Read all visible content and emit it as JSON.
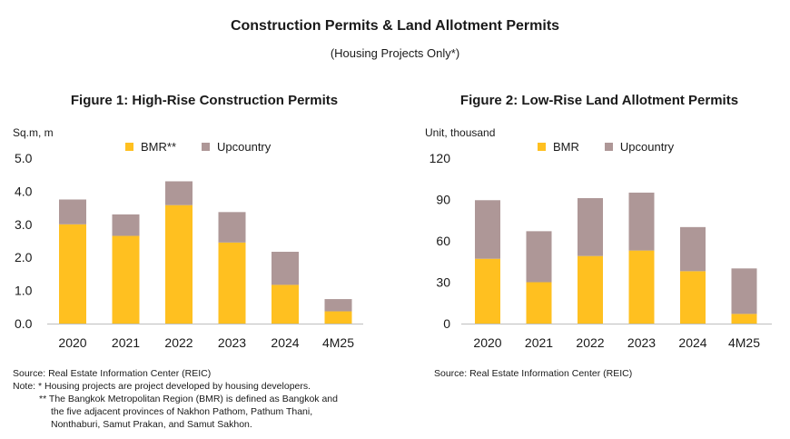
{
  "header": {
    "title": "Construction Permits & Land Allotment Permits",
    "subtitle": "(Housing Projects Only*)"
  },
  "colors": {
    "bmr": "#FFC020",
    "upcountry": "#AE9797"
  },
  "chart_data": [
    {
      "type": "bar",
      "stacked": true,
      "title": "Figure 1: High-Rise Construction Permits",
      "unit_label": "Sq.m, m",
      "categories": [
        "2020",
        "2021",
        "2022",
        "2023",
        "2024",
        "4M25"
      ],
      "series": [
        {
          "name": "BMR**",
          "values": [
            3.0,
            2.65,
            3.58,
            2.45,
            1.17,
            0.37
          ]
        },
        {
          "name": "Upcountry",
          "values": [
            0.75,
            0.65,
            0.72,
            0.92,
            1.0,
            0.37
          ]
        }
      ],
      "ylim": [
        0,
        5
      ],
      "yticks": [
        "0.0",
        "1.0",
        "2.0",
        "3.0",
        "4.0",
        "5.0"
      ],
      "grid": false,
      "legend": "top"
    },
    {
      "type": "bar",
      "stacked": true,
      "title": "Figure 2: Low-Rise Land Allotment Permits",
      "unit_label": "Unit, thousand",
      "categories": [
        "2020",
        "2021",
        "2022",
        "2023",
        "2024",
        "4M25"
      ],
      "series": [
        {
          "name": "BMR",
          "values": [
            47,
            30,
            49,
            53,
            38,
            7
          ]
        },
        {
          "name": "Upcountry",
          "values": [
            42.5,
            37,
            42,
            42,
            32,
            33
          ]
        }
      ],
      "ylim": [
        0,
        120
      ],
      "yticks": [
        "0",
        "30",
        "60",
        "90",
        "120"
      ],
      "grid": false,
      "legend": "top"
    }
  ],
  "notes_left": {
    "source": "Source: Real Estate Information Center (REIC)",
    "note1": "Note: * Housing projects are project developed by housing developers.",
    "note2": "** The Bangkok Metropolitan Region (BMR) is defined as Bangkok and",
    "note3": "the five adjacent provinces of Nakhon Pathom, Pathum Thani,",
    "note4": "Nonthaburi, Samut Prakan, and Samut Sakhon."
  },
  "notes_right": {
    "source": "Source: Real Estate Information Center (REIC)"
  }
}
